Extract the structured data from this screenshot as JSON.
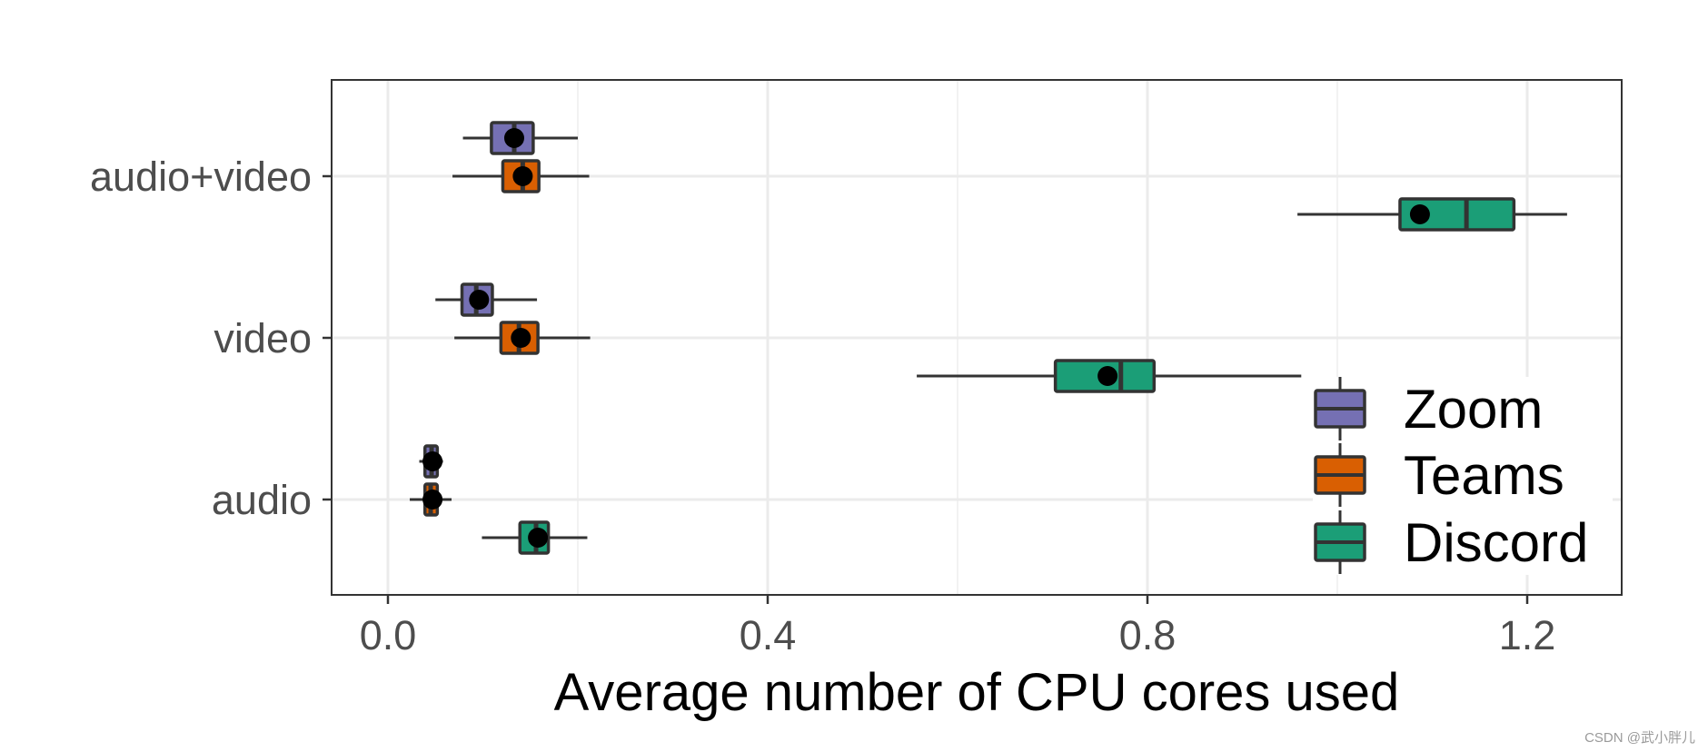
{
  "chart_data": {
    "type": "boxplot",
    "orientation": "horizontal",
    "title": "",
    "xlabel": "Average number of CPU cores used",
    "ylabel": "",
    "xlim": [
      -0.06,
      1.3
    ],
    "x_ticks": [
      0.0,
      0.4,
      0.8,
      1.2
    ],
    "x_tick_labels": [
      "0.0",
      "0.4",
      "0.8",
      "1.2"
    ],
    "categories": [
      "audio",
      "video",
      "audio+video"
    ],
    "grid": true,
    "legend_position": "bottom-right",
    "series": [
      {
        "name": "Zoom",
        "color": "#7570b3",
        "boxes": [
          {
            "category": "audio",
            "whisker_low": 0.033,
            "q1": 0.039,
            "median": 0.046,
            "q3": 0.052,
            "whisker_high": 0.058,
            "mean": 0.047
          },
          {
            "category": "video",
            "whisker_low": 0.05,
            "q1": 0.078,
            "median": 0.093,
            "q3": 0.11,
            "whisker_high": 0.157,
            "mean": 0.096
          },
          {
            "category": "audio+video",
            "whisker_low": 0.079,
            "q1": 0.109,
            "median": 0.133,
            "q3": 0.153,
            "whisker_high": 0.2,
            "mean": 0.133
          }
        ]
      },
      {
        "name": "Teams",
        "color": "#d95f02",
        "boxes": [
          {
            "category": "audio",
            "whisker_low": 0.023,
            "q1": 0.039,
            "median": 0.045,
            "q3": 0.052,
            "whisker_high": 0.067,
            "mean": 0.047
          },
          {
            "category": "video",
            "whisker_low": 0.07,
            "q1": 0.119,
            "median": 0.138,
            "q3": 0.158,
            "whisker_high": 0.213,
            "mean": 0.14
          },
          {
            "category": "audio+video",
            "whisker_low": 0.068,
            "q1": 0.121,
            "median": 0.142,
            "q3": 0.159,
            "whisker_high": 0.212,
            "mean": 0.142
          }
        ]
      },
      {
        "name": "Discord",
        "color": "#1b9e77",
        "boxes": [
          {
            "category": "audio",
            "whisker_low": 0.099,
            "q1": 0.139,
            "median": 0.156,
            "q3": 0.169,
            "whisker_high": 0.21,
            "mean": 0.158
          },
          {
            "category": "video",
            "whisker_low": 0.557,
            "q1": 0.703,
            "median": 0.772,
            "q3": 0.807,
            "whisker_high": 0.962,
            "mean": 0.758
          },
          {
            "category": "audio+video",
            "whisker_low": 0.958,
            "q1": 1.066,
            "median": 1.136,
            "q3": 1.186,
            "whisker_high": 1.242,
            "mean": 1.087
          }
        ]
      }
    ]
  },
  "watermark": "CSDN @武小胖儿"
}
